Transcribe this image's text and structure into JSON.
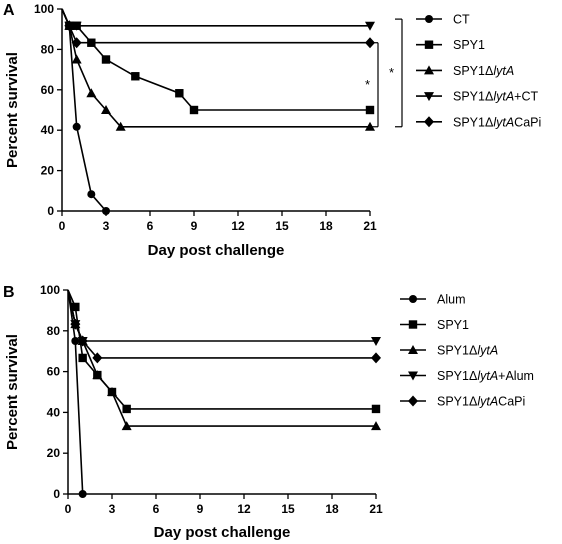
{
  "chart_data": [
    {
      "type": "line",
      "panel_label": "A",
      "xlabel": "Day post challenge",
      "ylabel": "Percent survival",
      "xlim": [
        0,
        21
      ],
      "ylim": [
        0,
        100
      ],
      "xticks": [
        "0",
        "3",
        "6",
        "9",
        "12",
        "15",
        "18",
        "21"
      ],
      "yticks": [
        "0",
        "20",
        "40",
        "60",
        "80",
        "100"
      ],
      "legend_position": "right",
      "series": [
        {
          "name": "CT",
          "marker": "circle",
          "points": [
            [
              0,
              100
            ],
            [
              0.5,
              91.7
            ],
            [
              1,
              41.7
            ],
            [
              2,
              8.3
            ],
            [
              3,
              0
            ]
          ]
        },
        {
          "name": "SPY1",
          "marker": "square",
          "points": [
            [
              0,
              100
            ],
            [
              0.5,
              91.7
            ],
            [
              1,
              91.7
            ],
            [
              2,
              83.3
            ],
            [
              3,
              75
            ],
            [
              5,
              66.7
            ],
            [
              8,
              58.3
            ],
            [
              9,
              50
            ],
            [
              21,
              50
            ]
          ]
        },
        {
          "name": "SPY1ΔlytA",
          "marker": "triangle-up",
          "points": [
            [
              0,
              100
            ],
            [
              0.5,
              91.7
            ],
            [
              1,
              75
            ],
            [
              2,
              58.3
            ],
            [
              3,
              50
            ],
            [
              4,
              41.7
            ],
            [
              21,
              41.7
            ]
          ]
        },
        {
          "name": "SPY1ΔlytA+CT",
          "marker": "triangle-down",
          "points": [
            [
              0,
              100
            ],
            [
              0.5,
              91.7
            ],
            [
              1,
              91.7
            ],
            [
              21,
              91.7
            ]
          ]
        },
        {
          "name": "SPY1ΔlytACaPi",
          "marker": "diamond",
          "points": [
            [
              0,
              100
            ],
            [
              0.5,
              91.7
            ],
            [
              1,
              83.3
            ],
            [
              21,
              83.3
            ]
          ]
        }
      ],
      "significance": [
        {
          "label": "*",
          "from": 83.3,
          "to": 41.7
        },
        {
          "label": "*",
          "from": 95,
          "to": 41.7
        }
      ]
    },
    {
      "type": "line",
      "panel_label": "B",
      "xlabel": "Day post challenge",
      "ylabel": "Percent survival",
      "xlim": [
        0,
        21
      ],
      "ylim": [
        0,
        100
      ],
      "xticks": [
        "0",
        "3",
        "6",
        "9",
        "12",
        "15",
        "18",
        "21"
      ],
      "yticks": [
        "0",
        "20",
        "40",
        "60",
        "80",
        "100"
      ],
      "legend_position": "right",
      "series": [
        {
          "name": "Alum",
          "marker": "circle",
          "points": [
            [
              0,
              100
            ],
            [
              0.5,
              75
            ],
            [
              1,
              0
            ]
          ]
        },
        {
          "name": "SPY1",
          "marker": "square",
          "points": [
            [
              0,
              100
            ],
            [
              0.5,
              91.7
            ],
            [
              1,
              66.7
            ],
            [
              2,
              58.3
            ],
            [
              3,
              50
            ],
            [
              4,
              41.7
            ],
            [
              21,
              41.7
            ]
          ]
        },
        {
          "name": "SPY1ΔlytA",
          "marker": "triangle-up",
          "points": [
            [
              0,
              100
            ],
            [
              0.5,
              83.3
            ],
            [
              1,
              75
            ],
            [
              2,
              58.3
            ],
            [
              3,
              50
            ],
            [
              4,
              33.3
            ],
            [
              21,
              33.3
            ]
          ]
        },
        {
          "name": "SPY1ΔlytA+Alum",
          "marker": "triangle-down",
          "points": [
            [
              0,
              100
            ],
            [
              0.5,
              83.3
            ],
            [
              1,
              75
            ],
            [
              21,
              75
            ]
          ]
        },
        {
          "name": "SPY1ΔlytACaPi",
          "marker": "diamond",
          "points": [
            [
              0,
              100
            ],
            [
              0.5,
              83.3
            ],
            [
              1,
              75
            ],
            [
              2,
              66.7
            ],
            [
              21,
              66.7
            ]
          ]
        }
      ],
      "significance": []
    }
  ]
}
